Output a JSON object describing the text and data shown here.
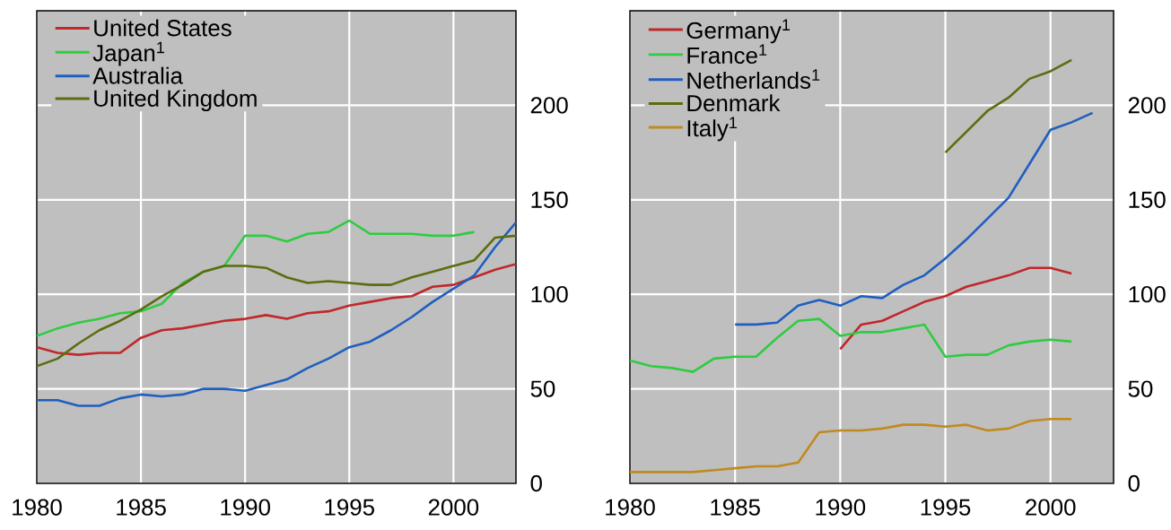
{
  "chart_data": [
    {
      "type": "line",
      "xlim": [
        1980,
        2003
      ],
      "ylim": [
        0,
        250
      ],
      "xticks": [
        1980,
        1985,
        1990,
        1995,
        2000
      ],
      "yticks": [
        0,
        50,
        100,
        150,
        200
      ],
      "grid": true,
      "legend": "top left",
      "series": [
        {
          "name": "United States",
          "color": "#c0282a",
          "x": [
            1980,
            1981,
            1982,
            1983,
            1984,
            1985,
            1986,
            1987,
            1988,
            1989,
            1990,
            1991,
            1992,
            1993,
            1994,
            1995,
            1996,
            1997,
            1998,
            1999,
            2000,
            2001,
            2002,
            2003
          ],
          "values": [
            72,
            69,
            68,
            69,
            69,
            77,
            81,
            82,
            84,
            86,
            87,
            89,
            87,
            90,
            91,
            94,
            96,
            98,
            99,
            104,
            105,
            109,
            113,
            116
          ]
        },
        {
          "name": "Japan$^{1}$",
          "color": "#2ecc40",
          "x": [
            1980,
            1981,
            1982,
            1983,
            1984,
            1985,
            1986,
            1987,
            1988,
            1989,
            1990,
            1991,
            1992,
            1993,
            1994,
            1995,
            1996,
            1997,
            1998,
            1999,
            2000,
            2001
          ],
          "values": [
            78,
            82,
            85,
            87,
            90,
            91,
            95,
            106,
            112,
            115,
            131,
            131,
            128,
            132,
            133,
            139,
            132,
            132,
            132,
            131,
            131,
            133
          ]
        },
        {
          "name": "Australia",
          "color": "#1f5fbf",
          "x": [
            1980,
            1981,
            1982,
            1983,
            1984,
            1985,
            1986,
            1987,
            1988,
            1989,
            1990,
            1991,
            1992,
            1993,
            1994,
            1995,
            1996,
            1997,
            1998,
            1999,
            2000,
            2001,
            2002,
            2003
          ],
          "values": [
            44,
            44,
            41,
            41,
            45,
            47,
            46,
            47,
            50,
            50,
            49,
            52,
            55,
            61,
            66,
            72,
            75,
            81,
            88,
            96,
            103,
            110,
            125,
            138
          ]
        },
        {
          "name": "United Kingdom",
          "color": "#5a6e10",
          "x": [
            1980,
            1981,
            1982,
            1983,
            1984,
            1985,
            1986,
            1987,
            1988,
            1989,
            1990,
            1991,
            1992,
            1993,
            1994,
            1995,
            1996,
            1997,
            1998,
            1999,
            2000,
            2001,
            2002,
            2003
          ],
          "values": [
            62,
            66,
            74,
            81,
            86,
            92,
            99,
            105,
            112,
            115,
            115,
            114,
            109,
            106,
            107,
            106,
            105,
            105,
            109,
            112,
            115,
            118,
            130,
            131
          ]
        }
      ]
    },
    {
      "type": "line",
      "xlim": [
        1980,
        2003
      ],
      "ylim": [
        0,
        250
      ],
      "xticks": [
        1980,
        1985,
        1990,
        1995,
        2000
      ],
      "yticks": [
        0,
        50,
        100,
        150,
        200
      ],
      "grid": true,
      "legend": "top left",
      "series": [
        {
          "name": "Germany$^{1}$",
          "color": "#c0282a",
          "x": [
            1990,
            1991,
            1992,
            1993,
            1994,
            1995,
            1996,
            1997,
            1998,
            1999,
            2000,
            2001
          ],
          "values": [
            71,
            84,
            86,
            91,
            96,
            99,
            104,
            107,
            110,
            114,
            114,
            111
          ]
        },
        {
          "name": "France$^{1}$",
          "color": "#2ecc40",
          "x": [
            1980,
            1981,
            1982,
            1983,
            1984,
            1985,
            1986,
            1987,
            1988,
            1989,
            1990,
            1991,
            1992,
            1993,
            1994,
            1995,
            1996,
            1997,
            1998,
            1999,
            2000,
            2001
          ],
          "values": [
            65,
            62,
            61,
            59,
            66,
            67,
            67,
            77,
            86,
            87,
            78,
            80,
            80,
            82,
            84,
            67,
            68,
            68,
            73,
            75,
            76,
            75
          ]
        },
        {
          "name": "Netherlands$^{1}$",
          "color": "#1f5fbf",
          "x": [
            1985,
            1986,
            1987,
            1988,
            1989,
            1990,
            1991,
            1992,
            1993,
            1994,
            1995,
            1996,
            1997,
            1998,
            1999,
            2000,
            2001,
            2002
          ],
          "values": [
            84,
            84,
            85,
            94,
            97,
            94,
            99,
            98,
            105,
            110,
            119,
            129,
            140,
            151,
            169,
            187,
            191,
            196
          ]
        },
        {
          "name": "Denmark",
          "color": "#5a6e10",
          "x": [
            1995,
            1996,
            1997,
            1998,
            1999,
            2000,
            2001
          ],
          "values": [
            175,
            186,
            197,
            204,
            214,
            218,
            224
          ]
        },
        {
          "name": "Italy$^{1}$",
          "color": "#c08a20",
          "x": [
            1980,
            1981,
            1982,
            1983,
            1984,
            1985,
            1986,
            1987,
            1988,
            1989,
            1990,
            1991,
            1992,
            1993,
            1994,
            1995,
            1996,
            1997,
            1998,
            1999,
            2000,
            2001
          ],
          "values": [
            6,
            6,
            6,
            6,
            7,
            8,
            9,
            9,
            11,
            27,
            28,
            28,
            29,
            31,
            31,
            30,
            31,
            28,
            29,
            33,
            34,
            34
          ]
        }
      ]
    }
  ]
}
